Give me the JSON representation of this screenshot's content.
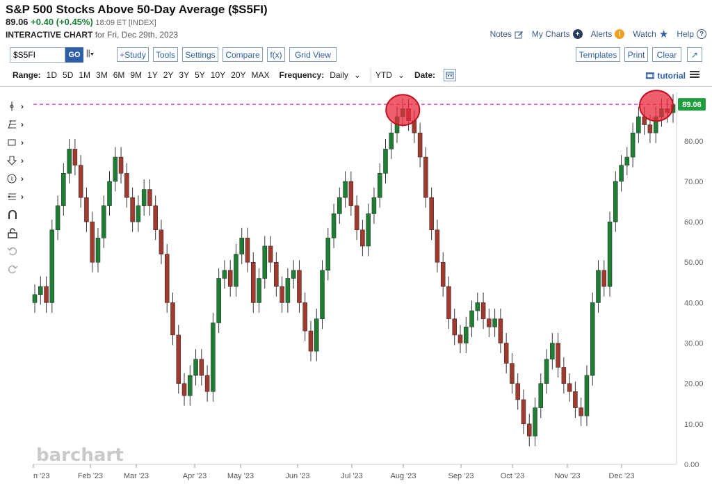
{
  "header": {
    "title": "S&P 500 Stocks Above 50-Day Average ($S5FI)",
    "price": "89.06",
    "change": "+0.40 (+0.45%)",
    "time": "18:09 ET [INDEX]",
    "chart_label": "INTERACTIVE CHART",
    "chart_date": "for Fri, Dec 29th, 2023"
  },
  "toplinks": [
    {
      "label": "Notes",
      "icon": "pencil-icon"
    },
    {
      "label": "My Charts",
      "icon": "plus-circle-icon"
    },
    {
      "label": "Alerts",
      "icon": "alert-icon"
    },
    {
      "label": "Watch",
      "icon": "star-icon"
    },
    {
      "label": "Help",
      "icon": "question-icon"
    }
  ],
  "toolbar": {
    "symbol": "$S5FI",
    "go": "GO",
    "study": "+Study",
    "tools": "Tools",
    "settings": "Settings",
    "compare": "Compare",
    "fx": "f(x)",
    "grid_view": "Grid View",
    "templates": "Templates",
    "print": "Print",
    "clear": "Clear"
  },
  "range": {
    "label": "Range:",
    "items": [
      "1D",
      "5D",
      "1M",
      "3M",
      "6M",
      "9M",
      "1Y",
      "2Y",
      "3Y",
      "5Y",
      "10Y",
      "20Y",
      "MAX"
    ],
    "frequency_label": "Frequency:",
    "frequency": "Daily",
    "period": "YTD",
    "date_label": "Date:",
    "tutorial": "tutorial"
  },
  "watermark": "barchart",
  "colors": {
    "up": "#1e7e34",
    "down": "#a0392e",
    "hline": "#e040c8",
    "circle": "#e8283c",
    "last_badge": "#1e9e3e"
  },
  "chart_data": {
    "type": "candlestick",
    "title": "S&P 500 Stocks Above 50-Day Average ($S5FI)",
    "ylim": [
      0,
      92
    ],
    "yticks": [
      0,
      10,
      20,
      30,
      40,
      50,
      60,
      70,
      80
    ],
    "ytick_labels": [
      "0.00",
      "10.00",
      "20.00",
      "30.00",
      "40.00",
      "50.00",
      "60.00",
      "70.00",
      "80.00"
    ],
    "xticks": [
      0,
      1,
      2,
      3,
      4,
      5,
      6,
      7,
      8,
      9,
      10,
      11
    ],
    "xtick_labels": [
      "n '23",
      "Feb '23",
      "Mar '23",
      "Apr '23",
      "May '23",
      "Jun '23",
      "Jul '23",
      "Aug '23",
      "Sep '23",
      "Oct '23",
      "Nov '23",
      "Dec '23"
    ],
    "close_series": [
      42,
      44,
      40,
      58,
      64,
      72,
      78,
      74,
      66,
      60,
      50,
      56,
      64,
      70,
      76,
      72,
      66,
      60,
      64,
      68,
      64,
      58,
      52,
      40,
      32,
      20,
      17,
      22,
      26,
      22,
      18,
      35,
      46,
      48,
      44,
      52,
      56,
      50,
      40,
      46,
      54,
      50,
      44,
      40,
      46,
      48,
      40,
      33,
      28,
      36,
      48,
      56,
      62,
      66,
      70,
      64,
      58,
      54,
      62,
      66,
      72,
      78,
      82,
      86,
      88,
      85,
      82,
      76,
      66,
      58,
      50,
      44,
      36,
      32,
      30,
      34,
      38,
      40,
      36,
      34,
      36,
      30,
      25,
      20,
      16,
      10,
      7,
      14,
      20,
      26,
      30,
      24,
      20,
      18,
      14,
      12,
      22,
      40,
      48,
      44,
      60,
      70,
      74,
      76,
      82,
      86,
      84,
      82,
      86,
      88,
      87,
      89.06
    ],
    "last_value": "89.06",
    "hline": 89.06,
    "highlights": [
      "Jul '23 high",
      "Dec '23 high"
    ]
  }
}
